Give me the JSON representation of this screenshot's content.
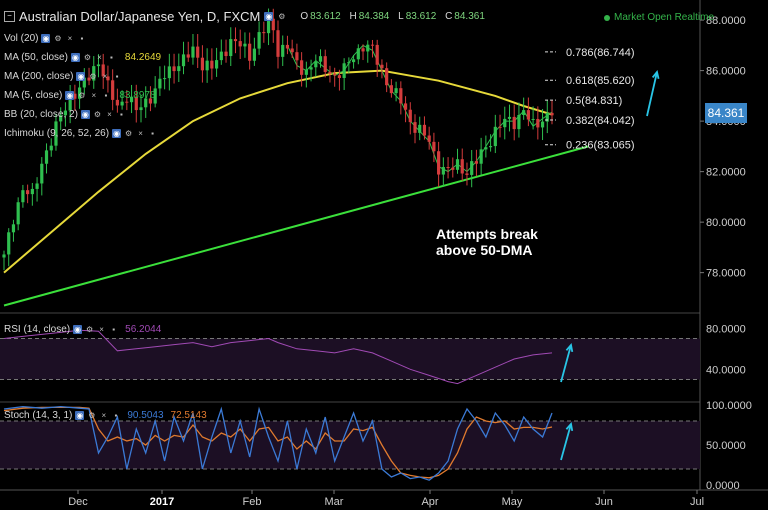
{
  "header": {
    "title": "Australian Dollar/Japanese Yen, D, FXCM",
    "open_label": "O",
    "open": "83.612",
    "high_label": "H",
    "high": "84.384",
    "low_label": "L",
    "low": "83.612",
    "close_label": "C",
    "close": "84.361",
    "status": "Market Open Realtime"
  },
  "indicators": [
    {
      "label": "Vol (20)",
      "value": ""
    },
    {
      "label": "MA (50, close)",
      "value": "84.2649"
    },
    {
      "label": "MA (200, close)",
      "value": ""
    },
    {
      "label": "MA (5, close)",
      "value": "83.8978"
    },
    {
      "label": "BB (20, close, 2)",
      "value": ""
    },
    {
      "label": "Ichimoku (9, 26, 52, 26)",
      "value": ""
    }
  ],
  "price_tag": "84.361",
  "annotation": {
    "line1": "Attempts break",
    "line2": "above 50-DMA"
  },
  "panes": {
    "rsi": {
      "label": "RSI (14, close)",
      "value": "56.2044"
    },
    "stoch": {
      "label": "Stoch (14, 3, 1)",
      "k": "90.5043",
      "d": "72.5143"
    }
  },
  "colors": {
    "up": "#2fbf4f",
    "down": "#d43c3c",
    "ma50": "#e6d93a",
    "ma5": "#2fbf4f",
    "trendline": "#3be03b",
    "arrow": "#29c5e6",
    "rsi": "#a04ab4",
    "stoch_k": "#3b7ad6",
    "stoch_d": "#e07a2e",
    "band": "#1c0f24"
  },
  "chart_data": {
    "type": "candlestick",
    "x_ticks": [
      "Dec",
      "2017",
      "Feb",
      "Mar",
      "Apr",
      "May",
      "Jun",
      "Jul"
    ],
    "price_axis": {
      "ticks": [
        "88.0000",
        "86.0000",
        "84.0000",
        "82.0000",
        "80.0000",
        "78.0000"
      ],
      "ylim": [
        76.6,
        88.4
      ]
    },
    "rsi_axis": {
      "ticks": [
        "80.0000",
        "40.0000"
      ],
      "ylim": [
        10,
        90
      ],
      "levels": [
        70,
        30
      ]
    },
    "stoch_axis": {
      "ticks": [
        "100.0000",
        "50.0000",
        "0.0000"
      ],
      "ylim": [
        0,
        100
      ],
      "levels": [
        80,
        20
      ]
    },
    "fib_levels": [
      {
        "label": "0.786(86.744)",
        "value": 86.744
      },
      {
        "label": "0.618(85.620)",
        "value": 85.62
      },
      {
        "label": "0.5(84.831)",
        "value": 84.831
      },
      {
        "label": "0.382(84.042)",
        "value": 84.042
      },
      {
        "label": "0.236(83.065)",
        "value": 83.065
      }
    ],
    "close_path": [
      [
        0,
        78.6
      ],
      [
        2,
        80.2
      ],
      [
        4,
        81.3
      ],
      [
        6,
        81.0
      ],
      [
        8,
        82.4
      ],
      [
        10,
        83.2
      ],
      [
        12,
        84.2
      ],
      [
        14,
        85.0
      ],
      [
        16,
        85.2
      ],
      [
        18,
        85.8
      ],
      [
        20,
        86.4
      ],
      [
        22,
        85.3
      ],
      [
        24,
        84.6
      ],
      [
        26,
        85.0
      ],
      [
        28,
        84.4
      ],
      [
        30,
        84.8
      ],
      [
        32,
        85.2
      ],
      [
        34,
        85.8
      ],
      [
        36,
        86.2
      ],
      [
        38,
        86.4
      ],
      [
        40,
        86.8
      ],
      [
        42,
        86.3
      ],
      [
        44,
        86.1
      ],
      [
        46,
        86.6
      ],
      [
        48,
        87.2
      ],
      [
        50,
        87.0
      ],
      [
        52,
        86.6
      ],
      [
        54,
        87.4
      ],
      [
        56,
        87.8
      ],
      [
        57,
        87.6
      ],
      [
        58,
        86.8
      ],
      [
        60,
        87.0
      ],
      [
        62,
        86.2
      ],
      [
        64,
        86.0
      ],
      [
        66,
        86.4
      ],
      [
        68,
        86.1
      ],
      [
        70,
        85.8
      ],
      [
        72,
        86.0
      ],
      [
        74,
        86.6
      ],
      [
        76,
        87.0
      ],
      [
        78,
        86.8
      ],
      [
        80,
        86.0
      ],
      [
        82,
        85.2
      ],
      [
        84,
        84.8
      ],
      [
        86,
        84.0
      ],
      [
        88,
        83.6
      ],
      [
        90,
        83.2
      ],
      [
        92,
        82.2
      ],
      [
        94,
        82.0
      ],
      [
        96,
        82.3
      ],
      [
        98,
        82.0
      ],
      [
        100,
        82.4
      ],
      [
        102,
        83.0
      ],
      [
        104,
        83.6
      ],
      [
        106,
        84.0
      ],
      [
        108,
        84.0
      ],
      [
        110,
        84.4
      ],
      [
        112,
        83.8
      ],
      [
        114,
        84.1
      ],
      [
        116,
        84.361
      ]
    ],
    "ma50": [
      [
        0,
        78.0
      ],
      [
        10,
        79.6
      ],
      [
        20,
        81.2
      ],
      [
        30,
        82.7
      ],
      [
        40,
        84.0
      ],
      [
        50,
        84.9
      ],
      [
        60,
        85.5
      ],
      [
        70,
        85.9
      ],
      [
        80,
        86.0
      ],
      [
        86,
        85.8
      ],
      [
        92,
        85.6
      ],
      [
        98,
        85.3
      ],
      [
        104,
        85.0
      ],
      [
        110,
        84.6
      ],
      [
        116,
        84.26
      ]
    ],
    "trendline": [
      [
        0,
        76.7
      ],
      [
        116,
        82.6
      ]
    ],
    "rsi": [
      [
        0,
        70
      ],
      [
        4,
        72
      ],
      [
        8,
        74
      ],
      [
        12,
        76
      ],
      [
        16,
        78
      ],
      [
        20,
        77
      ],
      [
        24,
        58
      ],
      [
        28,
        60
      ],
      [
        32,
        62
      ],
      [
        36,
        64
      ],
      [
        40,
        66
      ],
      [
        44,
        62
      ],
      [
        48,
        66
      ],
      [
        52,
        68
      ],
      [
        56,
        70
      ],
      [
        58,
        66
      ],
      [
        62,
        60
      ],
      [
        66,
        58
      ],
      [
        70,
        56
      ],
      [
        74,
        60
      ],
      [
        78,
        56
      ],
      [
        82,
        48
      ],
      [
        86,
        40
      ],
      [
        90,
        34
      ],
      [
        94,
        28
      ],
      [
        96,
        26
      ],
      [
        100,
        34
      ],
      [
        104,
        42
      ],
      [
        108,
        50
      ],
      [
        112,
        54
      ],
      [
        116,
        56
      ]
    ],
    "stoch_k": [
      [
        0,
        95
      ],
      [
        4,
        98
      ],
      [
        8,
        96
      ],
      [
        12,
        98
      ],
      [
        16,
        96
      ],
      [
        18,
        95
      ],
      [
        20,
        40
      ],
      [
        22,
        60
      ],
      [
        24,
        85
      ],
      [
        26,
        20
      ],
      [
        28,
        70
      ],
      [
        30,
        40
      ],
      [
        32,
        80
      ],
      [
        34,
        30
      ],
      [
        36,
        85
      ],
      [
        38,
        55
      ],
      [
        40,
        90
      ],
      [
        42,
        20
      ],
      [
        44,
        60
      ],
      [
        46,
        95
      ],
      [
        48,
        40
      ],
      [
        50,
        80
      ],
      [
        52,
        35
      ],
      [
        54,
        95
      ],
      [
        56,
        60
      ],
      [
        58,
        30
      ],
      [
        60,
        80
      ],
      [
        62,
        20
      ],
      [
        64,
        70
      ],
      [
        66,
        40
      ],
      [
        68,
        85
      ],
      [
        70,
        30
      ],
      [
        72,
        60
      ],
      [
        74,
        90
      ],
      [
        76,
        55
      ],
      [
        78,
        80
      ],
      [
        80,
        20
      ],
      [
        82,
        10
      ],
      [
        84,
        15
      ],
      [
        86,
        8
      ],
      [
        88,
        10
      ],
      [
        90,
        6
      ],
      [
        92,
        15
      ],
      [
        94,
        30
      ],
      [
        96,
        70
      ],
      [
        98,
        95
      ],
      [
        100,
        80
      ],
      [
        102,
        60
      ],
      [
        104,
        90
      ],
      [
        106,
        75
      ],
      [
        108,
        55
      ],
      [
        110,
        85
      ],
      [
        112,
        70
      ],
      [
        114,
        60
      ],
      [
        116,
        90
      ]
    ],
    "stoch_d": [
      [
        0,
        93
      ],
      [
        4,
        96
      ],
      [
        8,
        97
      ],
      [
        12,
        97
      ],
      [
        16,
        97
      ],
      [
        18,
        96
      ],
      [
        20,
        70
      ],
      [
        22,
        55
      ],
      [
        24,
        60
      ],
      [
        26,
        55
      ],
      [
        28,
        58
      ],
      [
        30,
        50
      ],
      [
        32,
        62
      ],
      [
        34,
        55
      ],
      [
        36,
        62
      ],
      [
        38,
        60
      ],
      [
        40,
        75
      ],
      [
        42,
        60
      ],
      [
        44,
        55
      ],
      [
        46,
        65
      ],
      [
        48,
        60
      ],
      [
        50,
        70
      ],
      [
        52,
        55
      ],
      [
        54,
        70
      ],
      [
        56,
        72
      ],
      [
        58,
        55
      ],
      [
        60,
        60
      ],
      [
        62,
        45
      ],
      [
        64,
        55
      ],
      [
        66,
        45
      ],
      [
        68,
        65
      ],
      [
        70,
        55
      ],
      [
        72,
        55
      ],
      [
        74,
        70
      ],
      [
        76,
        68
      ],
      [
        78,
        72
      ],
      [
        80,
        50
      ],
      [
        82,
        30
      ],
      [
        84,
        15
      ],
      [
        86,
        12
      ],
      [
        88,
        10
      ],
      [
        90,
        9
      ],
      [
        92,
        12
      ],
      [
        94,
        20
      ],
      [
        96,
        40
      ],
      [
        98,
        70
      ],
      [
        100,
        85
      ],
      [
        102,
        80
      ],
      [
        104,
        78
      ],
      [
        106,
        80
      ],
      [
        108,
        70
      ],
      [
        110,
        72
      ],
      [
        112,
        72
      ],
      [
        114,
        70
      ],
      [
        116,
        72.5
      ]
    ]
  }
}
